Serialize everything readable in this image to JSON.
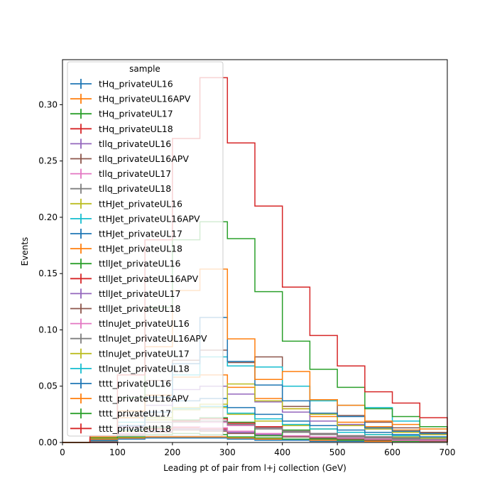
{
  "chart_data": {
    "type": "step",
    "xlabel": "Leading pt of pair from l+j collection (GeV)",
    "ylabel": "Events",
    "xlim": [
      0,
      700
    ],
    "ylim": [
      0,
      0.34
    ],
    "x_ticks": [
      "0",
      "100",
      "200",
      "300",
      "400",
      "500",
      "600",
      "700"
    ],
    "y_ticks": [
      "0.00",
      "0.05",
      "0.10",
      "0.15",
      "0.20",
      "0.25",
      "0.30"
    ],
    "grid": false,
    "legend_title": "sample",
    "legend_position": "upper-left",
    "bin_edges": [
      0,
      50,
      100,
      150,
      200,
      250,
      300,
      350,
      400,
      450,
      500,
      550,
      600,
      650,
      700
    ],
    "series": [
      {
        "name": "tHq_privateUL16",
        "color": "#1f77b4",
        "values": [
          0,
          0,
          0.003,
          0.004,
          0.004,
          0.004,
          0.003,
          0.002,
          0.002,
          0.001,
          0.001,
          0.001,
          0.001,
          0.001
        ]
      },
      {
        "name": "tHq_privateUL16APV",
        "color": "#ff7f0e",
        "values": [
          0,
          0,
          0.004,
          0.005,
          0.005,
          0.005,
          0.004,
          0.003,
          0.003,
          0.002,
          0.002,
          0.001,
          0.001,
          0.001
        ]
      },
      {
        "name": "tHq_privateUL17",
        "color": "#2ca02c",
        "values": [
          0,
          0,
          0.005,
          0.007,
          0.008,
          0.007,
          0.005,
          0.004,
          0.003,
          0.003,
          0.002,
          0.002,
          0.001,
          0.001
        ]
      },
      {
        "name": "tHq_privateUL18",
        "color": "#d62728",
        "values": [
          0,
          0,
          0.008,
          0.012,
          0.013,
          0.012,
          0.009,
          0.007,
          0.005,
          0.004,
          0.003,
          0.003,
          0.002,
          0.002
        ]
      },
      {
        "name": "tllq_privateUL16",
        "color": "#9467bd",
        "values": [
          0,
          0,
          0.006,
          0.01,
          0.012,
          0.011,
          0.009,
          0.007,
          0.005,
          0.004,
          0.003,
          0.003,
          0.002,
          0.002
        ]
      },
      {
        "name": "tllq_privateUL16APV",
        "color": "#8c564b",
        "values": [
          0,
          0,
          0.006,
          0.009,
          0.011,
          0.01,
          0.008,
          0.006,
          0.005,
          0.004,
          0.003,
          0.002,
          0.002,
          0.001
        ]
      },
      {
        "name": "tllq_privateUL17",
        "color": "#e377c2",
        "values": [
          0,
          0,
          0.008,
          0.012,
          0.014,
          0.013,
          0.01,
          0.008,
          0.006,
          0.005,
          0.004,
          0.003,
          0.002,
          0.002
        ]
      },
      {
        "name": "tllq_privateUL18",
        "color": "#7f7f7f",
        "values": [
          0,
          0,
          0.012,
          0.018,
          0.019,
          0.018,
          0.015,
          0.012,
          0.009,
          0.007,
          0.005,
          0.004,
          0.003,
          0.003
        ]
      },
      {
        "name": "ttHJet_privateUL16",
        "color": "#bcbd22",
        "values": [
          0,
          0.002,
          0.01,
          0.02,
          0.029,
          0.031,
          0.025,
          0.019,
          0.015,
          0.012,
          0.009,
          0.007,
          0.005,
          0.004
        ]
      },
      {
        "name": "ttHJet_privateUL16APV",
        "color": "#17becf",
        "values": [
          0,
          0.002,
          0.011,
          0.022,
          0.03,
          0.032,
          0.026,
          0.021,
          0.016,
          0.012,
          0.009,
          0.007,
          0.006,
          0.005
        ]
      },
      {
        "name": "ttHJet_privateUL17",
        "color": "#1f77b4",
        "values": [
          0,
          0.003,
          0.014,
          0.027,
          0.037,
          0.039,
          0.031,
          0.025,
          0.019,
          0.015,
          0.011,
          0.009,
          0.007,
          0.005
        ]
      },
      {
        "name": "ttHJet_privateUL18",
        "color": "#ff7f0e",
        "values": [
          0,
          0.005,
          0.022,
          0.042,
          0.058,
          0.06,
          0.049,
          0.039,
          0.03,
          0.023,
          0.018,
          0.014,
          0.011,
          0.008
        ]
      },
      {
        "name": "ttllJet_privateUL16",
        "color": "#2ca02c",
        "values": [
          0,
          0.001,
          0.006,
          0.013,
          0.02,
          0.022,
          0.018,
          0.006,
          0.011,
          0.008,
          0.006,
          0.005,
          0.004,
          0.003
        ]
      },
      {
        "name": "ttllJet_privateUL16APV",
        "color": "#d62728",
        "values": [
          0,
          0.001,
          0.006,
          0.012,
          0.019,
          0.021,
          0.017,
          0.014,
          0.01,
          0.008,
          0.006,
          0.005,
          0.004,
          0.003
        ]
      },
      {
        "name": "ttllJet_privateUL17",
        "color": "#9467bd",
        "values": [
          0,
          0.002,
          0.014,
          0.033,
          0.047,
          0.05,
          0.043,
          0.036,
          0.027,
          0.019,
          0.016,
          0.012,
          0.01,
          0.007
        ]
      },
      {
        "name": "ttllJet_privateUL18",
        "color": "#8c564b",
        "values": [
          0,
          0.003,
          0.024,
          0.055,
          0.073,
          0.082,
          0.071,
          0.076,
          0.032,
          0.038,
          0.024,
          0.018,
          0.013,
          0.009
        ]
      },
      {
        "name": "ttlnuJet_privateUL16",
        "color": "#e377c2",
        "values": [
          0,
          0.001,
          0.007,
          0.014,
          0.018,
          0.018,
          0.015,
          0.013,
          0.01,
          0.008,
          0.006,
          0.005,
          0.004,
          0.003
        ]
      },
      {
        "name": "ttlnuJet_privateUL16APV",
        "color": "#7f7f7f",
        "values": [
          0,
          0.001,
          0.007,
          0.014,
          0.018,
          0.019,
          0.016,
          0.013,
          0.01,
          0.008,
          0.006,
          0.005,
          0.004,
          0.003
        ]
      },
      {
        "name": "ttlnuJet_privateUL17",
        "color": "#bcbd22",
        "values": [
          0,
          0.002,
          0.01,
          0.022,
          0.031,
          0.034,
          0.052,
          0.037,
          0.03,
          0.025,
          0.015,
          0.012,
          0.009,
          0.007
        ]
      },
      {
        "name": "ttlnuJet_privateUL18",
        "color": "#17becf",
        "values": [
          0,
          0.003,
          0.018,
          0.04,
          0.06,
          0.076,
          0.068,
          0.067,
          0.05,
          0.037,
          0.033,
          0.031,
          0.019,
          0.014
        ]
      },
      {
        "name": "tttt_privateUL16",
        "color": "#1f77b4",
        "values": [
          0,
          0.002,
          0.015,
          0.04,
          0.07,
          0.111,
          0.072,
          0.051,
          0.037,
          0.026,
          0.023,
          0.013,
          0.01,
          0.008
        ]
      },
      {
        "name": "tttt_privateUL16APV",
        "color": "#ff7f0e",
        "values": [
          0,
          0.003,
          0.028,
          0.085,
          0.135,
          0.154,
          0.092,
          0.056,
          0.063,
          0.038,
          0.033,
          0.019,
          0.016,
          0.012
        ]
      },
      {
        "name": "tttt_privateUL17",
        "color": "#2ca02c",
        "values": [
          0,
          0.004,
          0.04,
          0.12,
          0.18,
          0.196,
          0.181,
          0.134,
          0.09,
          0.065,
          0.049,
          0.03,
          0.023,
          0.014
        ]
      },
      {
        "name": "tttt_privateUL18",
        "color": "#d62728",
        "values": [
          0,
          0.006,
          0.06,
          0.18,
          0.27,
          0.324,
          0.266,
          0.21,
          0.138,
          0.095,
          0.068,
          0.045,
          0.035,
          0.022
        ]
      }
    ]
  }
}
